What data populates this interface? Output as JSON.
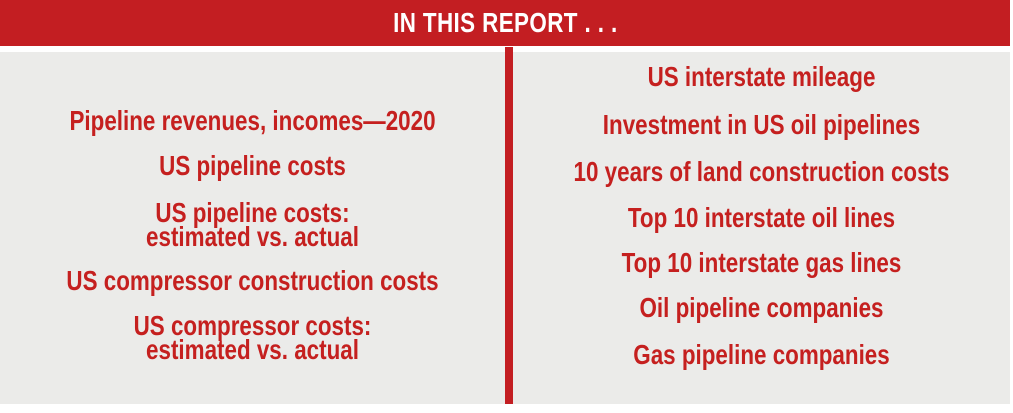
{
  "header": {
    "title": "IN THIS REPORT . . ."
  },
  "colors": {
    "accent_red": "#c31e22",
    "text_red": "#c5201f",
    "content_background": "#ebebe9",
    "header_text": "#ffffff"
  },
  "left_column": {
    "items": [
      {
        "line1": "Pipeline revenues, incomes—2020"
      },
      {
        "line1": "US pipeline costs"
      },
      {
        "line1": "US pipeline costs:",
        "line2": "estimated vs. actual"
      },
      {
        "line1": "US compressor construction costs"
      },
      {
        "line1": "US compressor costs:",
        "line2": "estimated vs. actual"
      }
    ]
  },
  "right_column": {
    "items": [
      {
        "line1": "US interstate mileage"
      },
      {
        "line1": "Investment in US oil pipelines"
      },
      {
        "line1": "10 years of land construction costs"
      },
      {
        "line1": "Top 10 interstate oil lines"
      },
      {
        "line1": "Top 10 interstate gas lines"
      },
      {
        "line1": "Oil pipeline companies"
      },
      {
        "line1": "Gas pipeline companies"
      }
    ]
  }
}
